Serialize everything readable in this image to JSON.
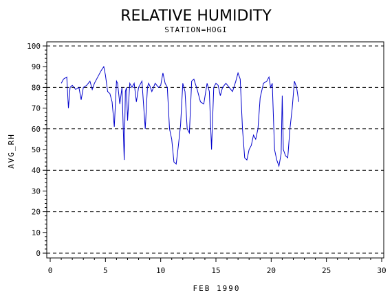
{
  "chart_data": {
    "type": "line",
    "title": "RELATIVE HUMIDITY",
    "subtitle": "STATION=HOGI",
    "xlabel": "FEB 1990",
    "ylabel": "AVG_RH",
    "xlim": [
      0,
      30
    ],
    "ylim": [
      0,
      100
    ],
    "x_ticks": [
      0,
      5,
      10,
      15,
      20,
      25,
      30
    ],
    "y_ticks": [
      0,
      10,
      20,
      30,
      40,
      50,
      60,
      70,
      80,
      90,
      100
    ],
    "reference_lines_y": [
      0,
      20,
      40,
      60,
      80,
      100
    ],
    "grid": "dashed horizontal reference lines",
    "line_color": "#0000cc",
    "series": [
      {
        "x": [
          1.0,
          1.2,
          1.5,
          1.65,
          1.8,
          2.0,
          2.3,
          2.6,
          2.8,
          3.0,
          3.3,
          3.6,
          3.8,
          4.0,
          4.3,
          4.6,
          4.85,
          5.0,
          5.2,
          5.4,
          5.6,
          5.8,
          6.0,
          6.1,
          6.3,
          6.5,
          6.7,
          6.8,
          6.9,
          7.0,
          7.2,
          7.4,
          7.6,
          7.8,
          8.0,
          8.3,
          8.6,
          8.8,
          8.9,
          9.0,
          9.2,
          9.5,
          9.8,
          10.0,
          10.2,
          10.4,
          10.6,
          10.8,
          11.0,
          11.2,
          11.4,
          11.6,
          11.8,
          12.0,
          12.2,
          12.4,
          12.6,
          12.8,
          13.0,
          13.3,
          13.6,
          13.9,
          14.2,
          14.4,
          14.6,
          14.8,
          15.0,
          15.2,
          15.4,
          15.6,
          15.9,
          16.2,
          16.5,
          16.8,
          17.0,
          17.2,
          17.4,
          17.6,
          17.8,
          18.0,
          18.2,
          18.4,
          18.6,
          18.8,
          19.0,
          19.3,
          19.6,
          19.8,
          19.95,
          20.1,
          20.3,
          20.5,
          20.7,
          20.9,
          21.0,
          21.1,
          21.3,
          21.5,
          21.7,
          21.9,
          22.1,
          22.3,
          22.5
        ],
        "values": [
          82,
          84,
          85,
          70,
          80,
          81,
          79,
          80,
          74,
          80,
          81,
          83,
          79,
          82,
          85,
          88,
          90,
          86,
          78,
          77,
          73,
          61,
          83,
          82,
          72,
          80,
          45,
          78,
          80,
          64,
          82,
          80,
          82,
          73,
          80,
          83,
          60,
          80,
          82,
          81,
          78,
          82,
          80,
          81,
          87,
          82,
          80,
          60,
          55,
          44,
          43,
          52,
          62,
          82,
          78,
          60,
          58,
          83,
          84,
          79,
          73,
          72,
          82,
          78,
          50,
          80,
          82,
          81,
          76,
          80,
          82,
          80,
          78,
          83,
          87,
          84,
          60,
          46,
          45,
          50,
          52,
          57,
          55,
          60,
          75,
          82,
          83,
          85,
          80,
          82,
          50,
          45,
          42,
          48,
          76,
          50,
          47,
          46,
          60,
          70,
          83,
          80,
          73
        ]
      }
    ]
  }
}
